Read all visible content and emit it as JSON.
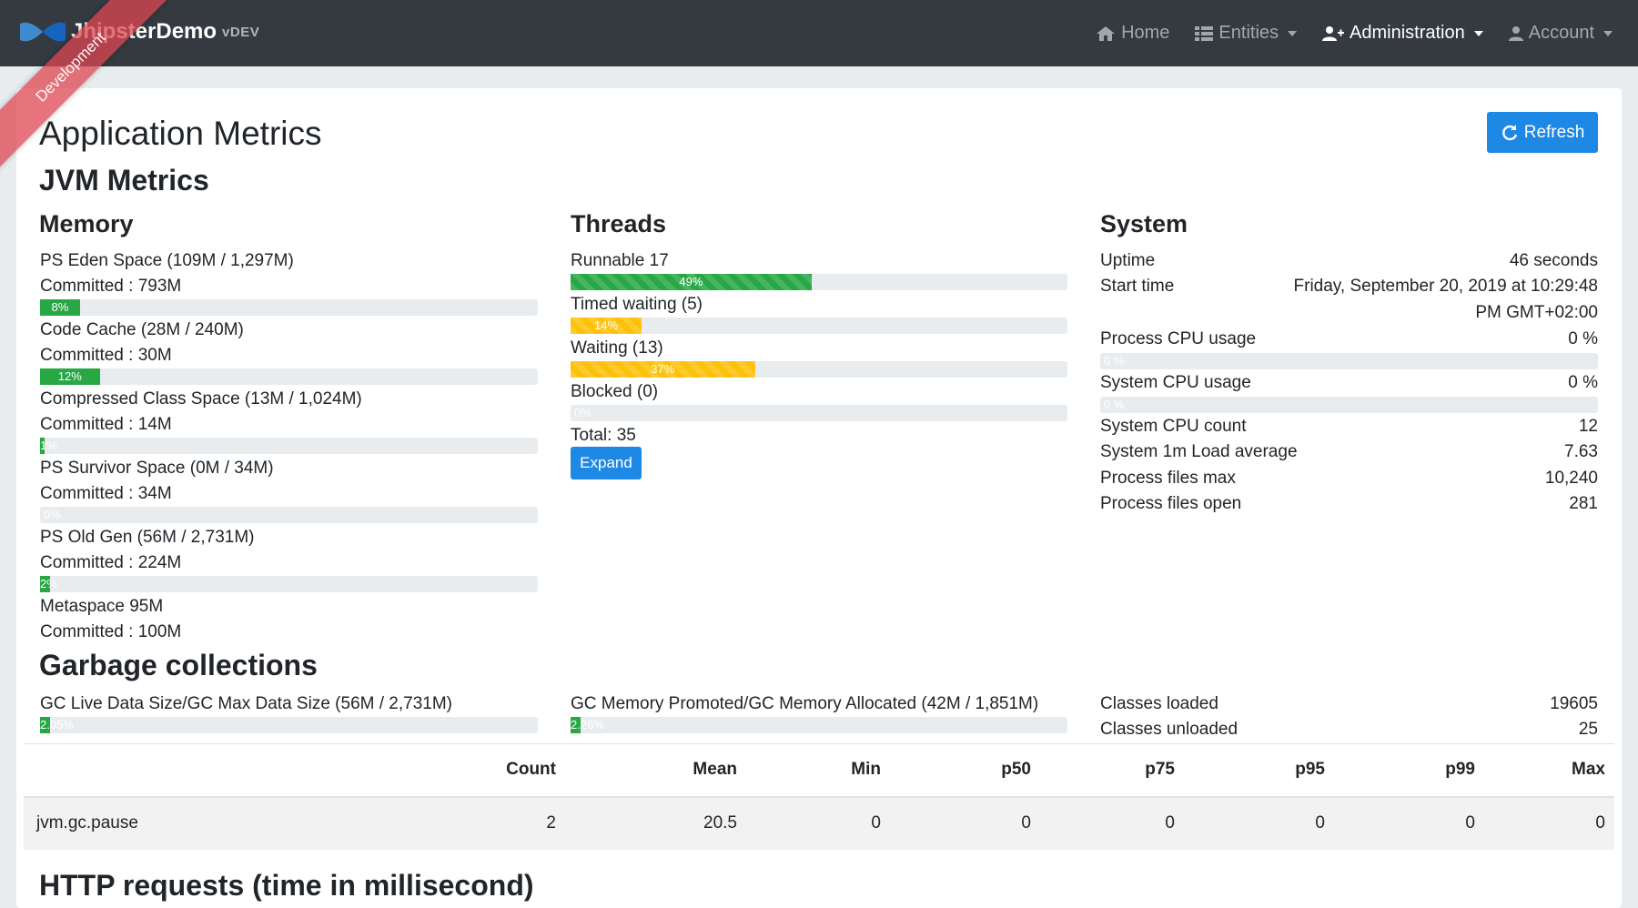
{
  "navbar": {
    "brand_name": "JhipsterDemo",
    "version": "vDEV",
    "items": [
      {
        "label": "Home",
        "icon": "home-icon"
      },
      {
        "label": "Entities",
        "icon": "th-list-icon"
      },
      {
        "label": "Administration",
        "icon": "user-plus-icon"
      },
      {
        "label": "Account",
        "icon": "user-icon"
      }
    ]
  },
  "ribbon": "Development",
  "page": {
    "title": "Application Metrics",
    "refresh_label": "Refresh",
    "jvm_title": "JVM Metrics",
    "gc_title": "Garbage collections",
    "http_title": "HTTP requests (time in millisecond)"
  },
  "memory": {
    "title": "Memory",
    "items": [
      {
        "label": "PS Eden Space (109M / 1,297M)",
        "committed": "Committed : 793M",
        "percent": 8,
        "bar_label": "8%"
      },
      {
        "label": "Code Cache (28M / 240M)",
        "committed": "Committed : 30M",
        "percent": 12,
        "bar_label": "12%"
      },
      {
        "label": "Compressed Class Space (13M / 1,024M)",
        "committed": "Committed : 14M",
        "percent": 1,
        "bar_label": "1%"
      },
      {
        "label": "PS Survivor Space (0M / 34M)",
        "committed": "Committed : 34M",
        "percent": 0,
        "bar_label": "0%"
      },
      {
        "label": "PS Old Gen (56M / 2,731M)",
        "committed": "Committed : 224M",
        "percent": 2,
        "bar_label": "2%"
      },
      {
        "label": "Metaspace 95M",
        "committed": "Committed : 100M"
      }
    ]
  },
  "threads": {
    "title": "Threads",
    "items": [
      {
        "label": "Runnable 17",
        "percent": 49,
        "bar_label": "49%",
        "color": "green"
      },
      {
        "label": "Timed waiting (5)",
        "percent": 14,
        "bar_label": "14%",
        "color": "yellow"
      },
      {
        "label": "Waiting (13)",
        "percent": 37,
        "bar_label": "37%",
        "color": "yellow"
      },
      {
        "label": "Blocked (0)",
        "percent": 0,
        "bar_label": "0%",
        "color": "green"
      }
    ],
    "total": "Total: 35",
    "expand_label": "Expand"
  },
  "system": {
    "title": "System",
    "uptime_label": "Uptime",
    "uptime_value": "46 seconds",
    "start_label": "Start time",
    "start_value_line1": "Friday, September 20, 2019 at 10:29:48",
    "start_value_line2": "PM GMT+02:00",
    "process_cpu_label": "Process CPU usage",
    "process_cpu_value": "0 %",
    "process_cpu_bar": "0 %",
    "process_cpu_percent": 0,
    "system_cpu_label": "System CPU usage",
    "system_cpu_value": "0 %",
    "system_cpu_bar": "0 %",
    "system_cpu_percent": 0,
    "stats": [
      {
        "label": "System CPU count",
        "value": "12"
      },
      {
        "label": "System 1m Load average",
        "value": "7.63"
      },
      {
        "label": "Process files max",
        "value": "10,240"
      },
      {
        "label": "Process files open",
        "value": "281"
      }
    ]
  },
  "gc": {
    "live_label": "GC Live Data Size/GC Max Data Size (56M / 2,731M)",
    "live_percent": 2.05,
    "live_bar": "2.05%",
    "promoted_label": "GC Memory Promoted/GC Memory Allocated (42M / 1,851M)",
    "promoted_percent": 2.26,
    "promoted_bar": "2.26%",
    "classes_loaded_label": "Classes loaded",
    "classes_loaded_value": "19605",
    "classes_unloaded_label": "Classes unloaded",
    "classes_unloaded_value": "25",
    "table": {
      "headers": [
        "",
        "Count",
        "Mean",
        "Min",
        "p50",
        "p75",
        "p95",
        "p99",
        "Max"
      ],
      "row": [
        "jvm.gc.pause",
        "2",
        "20.5",
        "0",
        "0",
        "0",
        "0",
        "0",
        "0"
      ]
    }
  },
  "colors": {
    "navbar": "#343a40",
    "primary": "#1e88e5",
    "success": "#28a745",
    "warning": "#ffc107"
  }
}
